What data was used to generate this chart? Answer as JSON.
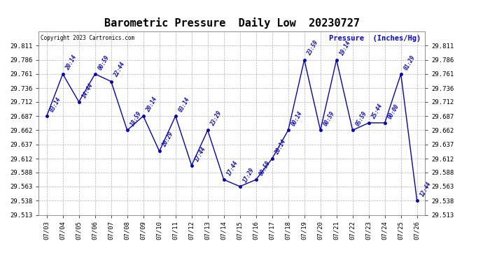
{
  "title": "Barometric Pressure  Daily Low  20230727",
  "ylabel": "Pressure  (Inches/Hg)",
  "copyright": "Copyright 2023 Cartronics.com",
  "line_color": "#0000cc",
  "bg_color": "#ffffff",
  "grid_color": "#aaaaaa",
  "ylim": [
    29.513,
    29.836
  ],
  "yticks": [
    29.513,
    29.538,
    29.563,
    29.588,
    29.612,
    29.637,
    29.662,
    29.687,
    29.712,
    29.736,
    29.761,
    29.786,
    29.811
  ],
  "dates": [
    "07/03",
    "07/04",
    "07/05",
    "07/06",
    "07/07",
    "07/08",
    "07/09",
    "07/10",
    "07/11",
    "07/12",
    "07/13",
    "07/14",
    "07/15",
    "07/16",
    "07/17",
    "07/18",
    "07/19",
    "07/20",
    "07/21",
    "07/22",
    "07/23",
    "07/24",
    "07/25",
    "07/26"
  ],
  "values": [
    29.687,
    29.761,
    29.712,
    29.761,
    29.748,
    29.662,
    29.687,
    29.625,
    29.687,
    29.6,
    29.662,
    29.575,
    29.563,
    29.575,
    29.612,
    29.662,
    29.786,
    29.662,
    29.786,
    29.662,
    29.675,
    29.675,
    29.761,
    29.538
  ],
  "labels": [
    "03:14",
    "20:14",
    "14:44",
    "00:59",
    "22:44",
    "18:59",
    "20:14",
    "20:29",
    "03:14",
    "17:44",
    "23:29",
    "17:44",
    "17:29",
    "00:59",
    "20:14",
    "00:14",
    "23:59",
    "08:59",
    "19:14",
    "05:59",
    "25:44",
    "00:00",
    "01:29",
    "12:44"
  ]
}
